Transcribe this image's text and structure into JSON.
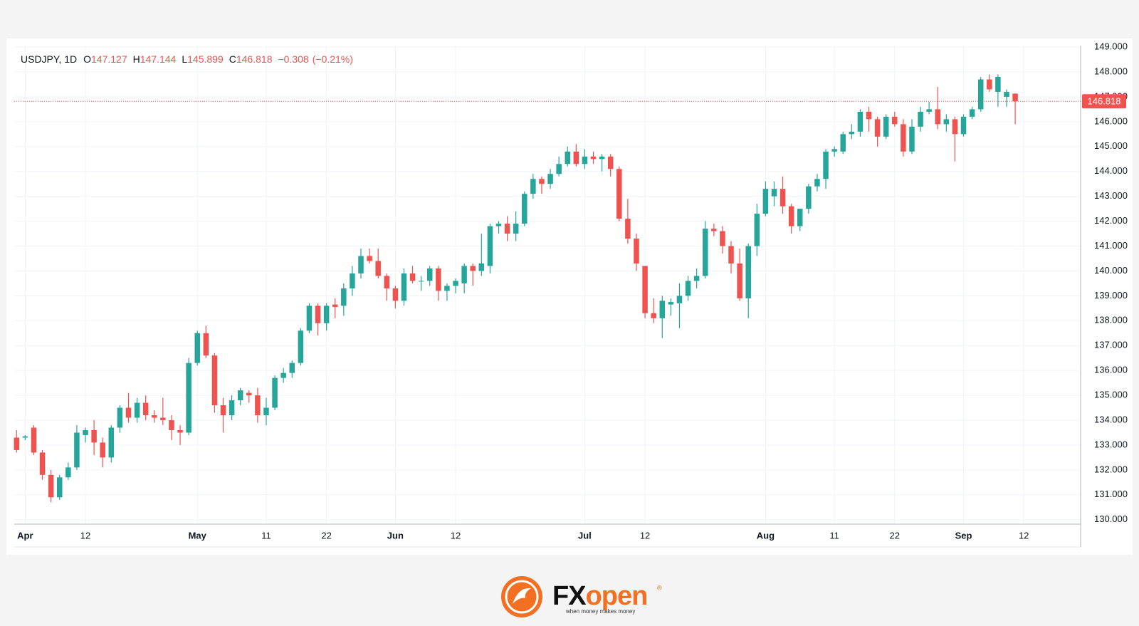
{
  "chart_data": {
    "type": "candlestick",
    "symbol": "USDJPY, 1D",
    "header": {
      "open_label": "O",
      "high_label": "H",
      "low_label": "L",
      "close_label": "C",
      "change": "−0.308",
      "change_pct": "(−0.21%)"
    },
    "up_color": "#26a69a",
    "down_color": "#ef5350",
    "grid": true,
    "ylim": [
      129.82,
      149.06
    ],
    "yticks": [
      {
        "value": 130,
        "label": "130.000"
      },
      {
        "value": 131,
        "label": "131.000"
      },
      {
        "value": 132,
        "label": "132.000"
      },
      {
        "value": 133,
        "label": "133.000"
      },
      {
        "value": 134,
        "label": "134.000"
      },
      {
        "value": 135,
        "label": "135.000"
      },
      {
        "value": 136,
        "label": "136.000"
      },
      {
        "value": 137,
        "label": "137.000"
      },
      {
        "value": 138,
        "label": "138.000"
      },
      {
        "value": 139,
        "label": "139.000"
      },
      {
        "value": 140,
        "label": "140.000"
      },
      {
        "value": 141,
        "label": "141.000"
      },
      {
        "value": 142,
        "label": "142.000"
      },
      {
        "value": 143,
        "label": "143.000"
      },
      {
        "value": 144,
        "label": "144.000"
      },
      {
        "value": 145,
        "label": "145.000"
      },
      {
        "value": 146,
        "label": "146.000"
      },
      {
        "value": 147,
        "label": "147.000"
      },
      {
        "value": 148,
        "label": "148.000"
      },
      {
        "value": 149,
        "label": "149.000"
      }
    ],
    "xlim": [
      -0.27,
      123.6
    ],
    "xticks": [
      {
        "value": 1,
        "label": "Apr"
      },
      {
        "value": 8,
        "label": "12"
      },
      {
        "value": 21,
        "label": "May"
      },
      {
        "value": 29,
        "label": "11"
      },
      {
        "value": 36,
        "label": "22"
      },
      {
        "value": 44,
        "label": "Jun"
      },
      {
        "value": 51,
        "label": "12"
      },
      {
        "value": 66,
        "label": "Jul"
      },
      {
        "value": 73,
        "label": "12"
      },
      {
        "value": 87,
        "label": "Aug"
      },
      {
        "value": 95,
        "label": "11"
      },
      {
        "value": 102,
        "label": "22"
      },
      {
        "value": 110,
        "label": "Sep"
      },
      {
        "value": 117,
        "label": "12"
      }
    ],
    "candles": [
      [
        133.3,
        133.6,
        132.7,
        132.8
      ],
      [
        133.3,
        133.4,
        133.2,
        133.35
      ],
      [
        133.7,
        133.8,
        132.6,
        132.7
      ],
      [
        132.7,
        132.8,
        131.6,
        131.8
      ],
      [
        131.8,
        132.0,
        130.7,
        130.9
      ],
      [
        130.9,
        131.8,
        130.8,
        131.7
      ],
      [
        131.7,
        132.3,
        131.6,
        132.1
      ],
      [
        132.1,
        133.8,
        132.0,
        133.5
      ],
      [
        133.4,
        133.7,
        133.1,
        133.6
      ],
      [
        133.6,
        134.0,
        132.6,
        133.1
      ],
      [
        133.1,
        133.3,
        132.1,
        132.5
      ],
      [
        132.5,
        133.8,
        132.3,
        133.7
      ],
      [
        133.7,
        134.6,
        133.5,
        134.5
      ],
      [
        134.5,
        135.1,
        133.9,
        134.1
      ],
      [
        134.1,
        134.9,
        133.9,
        134.7
      ],
      [
        134.7,
        135.0,
        134.0,
        134.2
      ],
      [
        134.2,
        134.4,
        133.9,
        134.1
      ],
      [
        134.1,
        134.9,
        133.8,
        134.0
      ],
      [
        134.0,
        134.2,
        133.2,
        133.6
      ],
      [
        133.6,
        133.8,
        133.0,
        133.5
      ],
      [
        133.5,
        136.5,
        133.4,
        136.3
      ],
      [
        136.3,
        137.6,
        136.2,
        137.5
      ],
      [
        137.5,
        137.8,
        136.5,
        136.6
      ],
      [
        136.6,
        136.7,
        134.3,
        134.6
      ],
      [
        134.6,
        134.9,
        133.5,
        134.2
      ],
      [
        134.2,
        135.0,
        134.0,
        134.8
      ],
      [
        134.8,
        135.3,
        134.6,
        135.2
      ],
      [
        135.1,
        135.2,
        134.7,
        135.0
      ],
      [
        135.0,
        135.3,
        133.9,
        134.2
      ],
      [
        134.2,
        134.9,
        133.8,
        134.5
      ],
      [
        134.5,
        135.8,
        134.4,
        135.7
      ],
      [
        135.7,
        136.1,
        135.5,
        135.9
      ],
      [
        135.9,
        136.4,
        135.7,
        136.3
      ],
      [
        136.3,
        137.7,
        136.2,
        137.6
      ],
      [
        137.6,
        138.7,
        137.5,
        138.6
      ],
      [
        138.6,
        138.7,
        137.4,
        137.9
      ],
      [
        137.9,
        138.7,
        137.6,
        138.6
      ],
      [
        138.65,
        138.9,
        138.1,
        138.55
      ],
      [
        138.6,
        139.5,
        138.2,
        139.3
      ],
      [
        139.3,
        140.2,
        139.0,
        139.9
      ],
      [
        139.9,
        140.9,
        139.7,
        140.6
      ],
      [
        140.6,
        140.9,
        140.3,
        140.4
      ],
      [
        140.4,
        140.9,
        139.7,
        139.8
      ],
      [
        139.8,
        139.9,
        138.8,
        139.3
      ],
      [
        139.3,
        139.4,
        138.5,
        138.8
      ],
      [
        138.8,
        140.1,
        138.6,
        139.9
      ],
      [
        139.9,
        140.2,
        139.5,
        139.6
      ],
      [
        139.6,
        139.8,
        139.2,
        139.6
      ],
      [
        139.6,
        140.2,
        139.4,
        140.1
      ],
      [
        140.1,
        140.2,
        138.8,
        139.2
      ],
      [
        139.2,
        139.5,
        138.8,
        139.4
      ],
      [
        139.4,
        139.7,
        139.1,
        139.6
      ],
      [
        139.5,
        140.3,
        139.1,
        140.2
      ],
      [
        140.2,
        140.3,
        139.4,
        140.0
      ],
      [
        140.0,
        141.5,
        139.8,
        140.3
      ],
      [
        140.2,
        141.9,
        139.9,
        141.8
      ],
      [
        141.8,
        142.0,
        141.5,
        141.9
      ],
      [
        141.9,
        142.2,
        141.2,
        141.5
      ],
      [
        141.5,
        142.4,
        141.2,
        141.9
      ],
      [
        141.9,
        143.2,
        141.8,
        143.1
      ],
      [
        143.1,
        143.9,
        142.9,
        143.7
      ],
      [
        143.7,
        143.8,
        143.1,
        143.5
      ],
      [
        143.5,
        144.1,
        143.3,
        143.9
      ],
      [
        143.9,
        144.6,
        143.8,
        144.3
      ],
      [
        144.3,
        145.0,
        144.2,
        144.8
      ],
      [
        144.8,
        145.1,
        144.2,
        144.3
      ],
      [
        144.3,
        144.9,
        144.1,
        144.6
      ],
      [
        144.6,
        144.8,
        144.3,
        144.5
      ],
      [
        144.5,
        144.7,
        144.0,
        144.6
      ],
      [
        144.6,
        144.7,
        143.8,
        144.1
      ],
      [
        144.1,
        144.2,
        142.0,
        142.1
      ],
      [
        142.1,
        142.9,
        141.1,
        141.3
      ],
      [
        141.3,
        141.5,
        140.0,
        140.3
      ],
      [
        140.2,
        140.2,
        138.1,
        138.3
      ],
      [
        138.3,
        138.9,
        137.9,
        138.1
      ],
      [
        138.1,
        139.0,
        137.3,
        138.8
      ],
      [
        138.65,
        138.9,
        138.2,
        138.75
      ],
      [
        138.7,
        139.5,
        137.7,
        139.0
      ],
      [
        139.0,
        139.8,
        138.8,
        139.6
      ],
      [
        139.6,
        140.1,
        139.3,
        139.8
      ],
      [
        139.8,
        142.0,
        139.7,
        141.7
      ],
      [
        141.7,
        141.9,
        141.4,
        141.6
      ],
      [
        141.6,
        141.8,
        140.7,
        141.0
      ],
      [
        141.0,
        141.2,
        139.9,
        140.3
      ],
      [
        140.3,
        140.9,
        138.8,
        138.9
      ],
      [
        138.9,
        141.1,
        138.1,
        141.0
      ],
      [
        141.0,
        142.7,
        140.6,
        142.3
      ],
      [
        142.3,
        143.6,
        142.2,
        143.3
      ],
      [
        143.0,
        143.6,
        142.6,
        143.3
      ],
      [
        143.3,
        143.8,
        142.3,
        142.6
      ],
      [
        142.6,
        142.7,
        141.5,
        141.8
      ],
      [
        141.8,
        142.5,
        141.6,
        142.5
      ],
      [
        142.5,
        143.5,
        142.3,
        143.4
      ],
      [
        143.4,
        143.9,
        143.2,
        143.7
      ],
      [
        143.7,
        144.9,
        143.3,
        144.8
      ],
      [
        144.8,
        145.0,
        144.6,
        144.9
      ],
      [
        144.8,
        145.6,
        144.7,
        145.5
      ],
      [
        145.5,
        145.9,
        145.3,
        145.6
      ],
      [
        145.6,
        146.5,
        145.4,
        146.4
      ],
      [
        146.4,
        146.6,
        145.6,
        146.1
      ],
      [
        146.1,
        146.2,
        145.0,
        145.4
      ],
      [
        145.4,
        146.3,
        145.3,
        146.2
      ],
      [
        146.2,
        146.4,
        145.8,
        145.9
      ],
      [
        145.9,
        146.1,
        144.6,
        144.8
      ],
      [
        144.8,
        146.1,
        144.7,
        145.8
      ],
      [
        145.8,
        146.6,
        145.6,
        146.4
      ],
      [
        146.4,
        146.8,
        146.3,
        146.5
      ],
      [
        146.5,
        147.4,
        145.7,
        145.9
      ],
      [
        145.9,
        146.3,
        145.6,
        146.1
      ],
      [
        146.1,
        146.2,
        144.4,
        145.5
      ],
      [
        145.5,
        146.3,
        145.4,
        146.2
      ],
      [
        146.2,
        146.6,
        146.1,
        146.5
      ],
      [
        146.5,
        147.8,
        146.4,
        147.7
      ],
      [
        147.7,
        147.9,
        147.2,
        147.3
      ],
      [
        147.2,
        147.9,
        146.6,
        147.8
      ],
      [
        147.0,
        147.3,
        146.6,
        147.2
      ],
      [
        147.127,
        147.144,
        145.899,
        146.818
      ]
    ]
  },
  "logo": {
    "brand_a": "FX",
    "brand_b": "open",
    "tagline": "when money makes money"
  }
}
